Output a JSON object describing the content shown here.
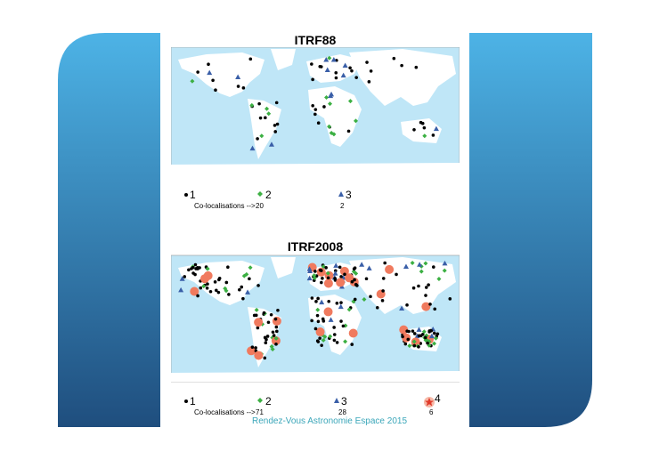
{
  "maps": [
    {
      "title": "ITRF88",
      "legend": [
        "1",
        "2",
        "3"
      ],
      "colocation_label": "Co-localisations -->",
      "colocations": [
        "20",
        "2"
      ]
    },
    {
      "title": "ITRF2008",
      "legend": [
        "1",
        "2",
        "3",
        "4"
      ],
      "colocation_label": "Co-localisations -->",
      "colocations": [
        "71",
        "28",
        "6"
      ]
    }
  ],
  "footer": "Rendez-Vous Astronomie Espace 2015"
}
